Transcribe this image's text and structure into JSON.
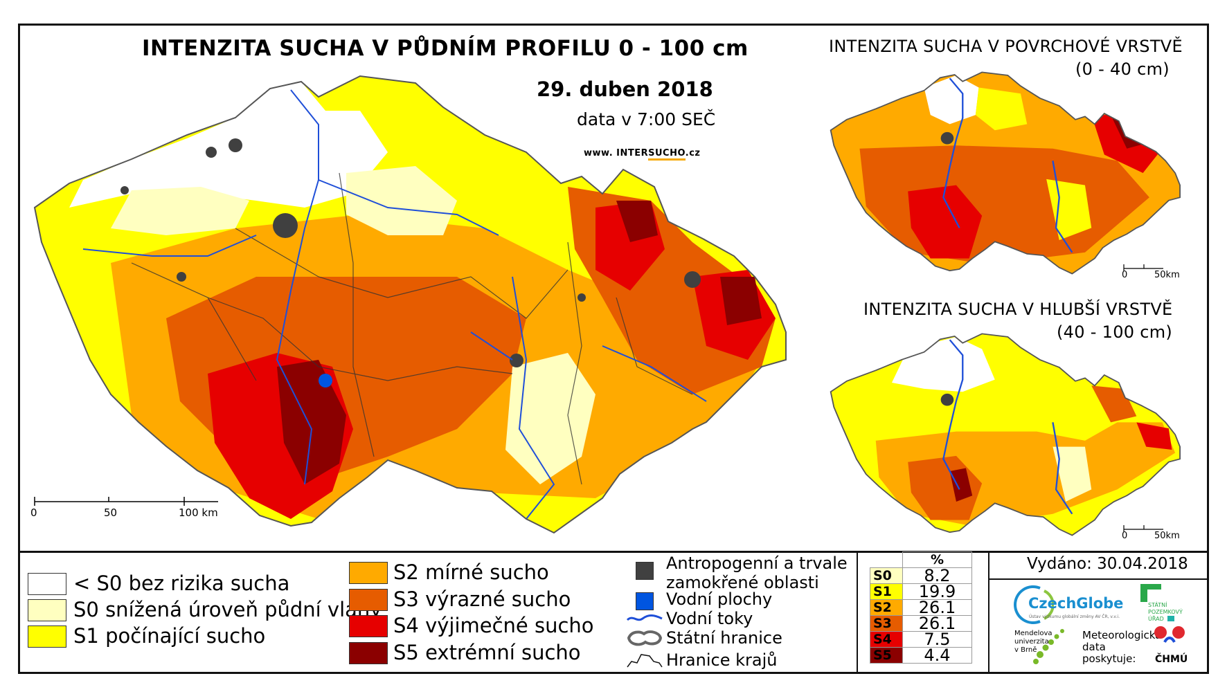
{
  "main": {
    "title": "INTENZITA SUCHA V PŮDNÍM PROFILU 0 - 100 cm",
    "date": "29. duben 2018",
    "time": "data v 7:00 SEČ",
    "web_prefix": "www. INTER",
    "web_highlight": "SUCHO",
    "web_suffix": ".cz",
    "scale": {
      "l0": "0",
      "l50": "50",
      "l100": "100 km"
    }
  },
  "inset_top": {
    "title": "INTENZITA SUCHA V POVRCHOVÉ VRSTVĚ",
    "subtitle": "(0 - 40 cm)",
    "scale": {
      "l0": "0",
      "l50": "50km"
    }
  },
  "inset_bottom": {
    "title": "INTENZITA SUCHA V HLUBŠÍ VRSTVĚ",
    "subtitle": "(40 - 100 cm)",
    "scale": {
      "l0": "0",
      "l50": "50km"
    }
  },
  "legend": {
    "classes": [
      {
        "label": "< S0 bez rizika sucha",
        "color": "#ffffff"
      },
      {
        "label": "S0 snížená úroveň půdní vláhy",
        "color": "#ffffc0"
      },
      {
        "label": "S1 počínající sucho",
        "color": "#ffff00"
      },
      {
        "label": "S2 mírné sucho",
        "color": "#ffaa00"
      },
      {
        "label": "S3 výrazné sucho",
        "color": "#e65c00"
      },
      {
        "label": "S4 výjimečné sucho",
        "color": "#e60000"
      },
      {
        "label": "S5 extrémní sucho",
        "color": "#8b0000"
      }
    ],
    "other": {
      "anthropogenic": "Antropogenní a trvale zamokřené oblasti",
      "anthropogenic_l1": "Antropogenní a trvale",
      "anthropogenic_l2": "zamokřené oblasti",
      "water_areas": "Vodní plochy",
      "water_streams": "Vodní toky",
      "state_border": "Státní hranice",
      "region_border": "Hranice krajů"
    },
    "colors": {
      "anthropogenic": "#404040",
      "water_areas": "#0055e0",
      "rivers": "#1f4fd8"
    }
  },
  "percent_table": {
    "header": "%",
    "rows": [
      {
        "code": "S0",
        "value": "8.2",
        "color": "#ffffc0"
      },
      {
        "code": "S1",
        "value": "19.9",
        "color": "#ffff00"
      },
      {
        "code": "S2",
        "value": "26.1",
        "color": "#ffaa00"
      },
      {
        "code": "S3",
        "value": "26.1",
        "color": "#e65c00"
      },
      {
        "code": "S4",
        "value": "7.5",
        "color": "#e60000"
      },
      {
        "code": "S5",
        "value": "4.4",
        "color": "#8b0000"
      }
    ]
  },
  "issued": "Vydáno: 30.04.2018",
  "logos": {
    "czechglobe": "CzechGlobe",
    "czechglobe_sub": "Ústav výzkumu globální změny AV ČR, v.v.i.",
    "spu_l1": "STÁTNÍ",
    "spu_l2": "POZEMKOVÝ",
    "spu_l3": "ÚŘAD",
    "mendelu_l1": "Mendelova",
    "mendelu_l2": "univerzita",
    "mendelu_l3": "v Brně",
    "meteo_l1": "Meteorologická",
    "meteo_l2": "data",
    "meteo_l3": "poskytuje:",
    "chmu": "ČHMÚ"
  }
}
